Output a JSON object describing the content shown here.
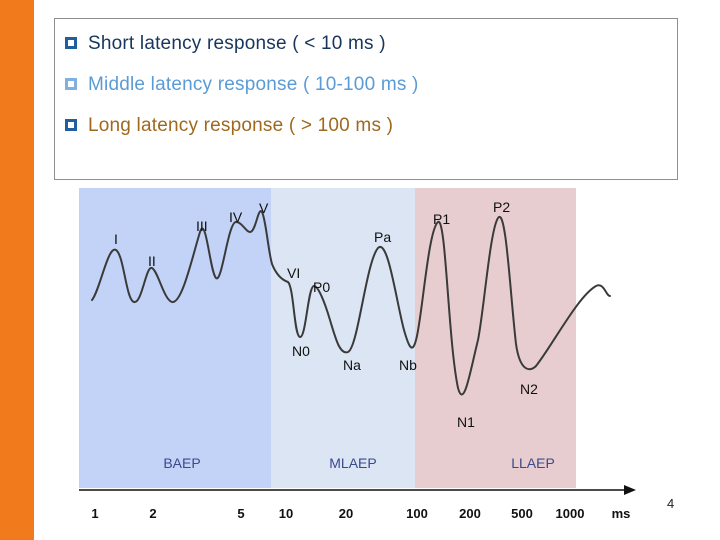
{
  "bullets": [
    {
      "text": "Short latency response ( < 10 ms )",
      "color": "#17365d"
    },
    {
      "text": "Middle latency response ( 10-100 ms )",
      "color": "#5b9bd5"
    },
    {
      "text": "Long latency response ( > 100 ms )",
      "color": "#a0681e"
    }
  ],
  "regions": [
    {
      "label": "BAEP",
      "color": "#c2d3f7"
    },
    {
      "label": "MLAEP",
      "color": "#dbe5f4"
    },
    {
      "label": "LLAEP",
      "color": "#e8cdd0"
    }
  ],
  "waves": [
    "I",
    "II",
    "III",
    "IV",
    "V",
    "VI",
    "P0",
    "N0",
    "Na",
    "Pa",
    "Nb",
    "P1",
    "N1",
    "P2",
    "N2"
  ],
  "axis": {
    "ticks": [
      "1",
      "2",
      "5",
      "10",
      "20",
      "100",
      "200",
      "500",
      "1000"
    ],
    "unit": "ms"
  },
  "page_number": "4",
  "colors": {
    "sidebar": "#f07a1c",
    "trace": "#3a3a3a"
  }
}
